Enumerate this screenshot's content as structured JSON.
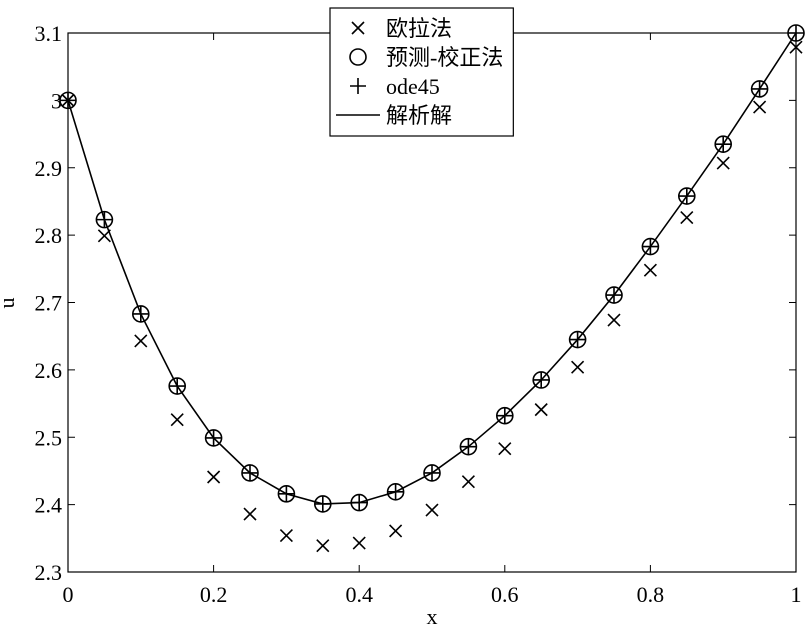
{
  "chart_data": {
    "type": "line",
    "xlabel": "x",
    "ylabel": "u",
    "x": [
      0,
      0.05,
      0.1,
      0.15,
      0.2,
      0.25,
      0.3,
      0.35,
      0.4,
      0.45,
      0.5,
      0.55,
      0.6,
      0.65,
      0.7,
      0.75,
      0.8,
      0.85,
      0.9,
      0.95,
      1
    ],
    "series": [
      {
        "name": "欧拉法",
        "color": "#000000",
        "marker": "x",
        "line": false,
        "values": [
          3.0,
          2.799,
          2.643,
          2.526,
          2.441,
          2.386,
          2.354,
          2.339,
          2.343,
          2.361,
          2.392,
          2.434,
          2.483,
          2.541,
          2.604,
          2.674,
          2.748,
          2.826,
          2.907,
          2.99,
          3.079
        ]
      },
      {
        "name": "预测-校正法",
        "color": "#000000",
        "marker": "o",
        "line": false,
        "values": [
          3.0,
          2.823,
          2.683,
          2.576,
          2.499,
          2.447,
          2.416,
          2.401,
          2.403,
          2.419,
          2.447,
          2.486,
          2.532,
          2.585,
          2.645,
          2.711,
          2.783,
          2.858,
          2.935,
          3.017,
          3.1
        ]
      },
      {
        "name": "ode45",
        "color": "#000000",
        "marker": "+",
        "line": false,
        "values": [
          3.0,
          2.823,
          2.683,
          2.576,
          2.499,
          2.447,
          2.416,
          2.401,
          2.403,
          2.419,
          2.447,
          2.486,
          2.532,
          2.585,
          2.645,
          2.711,
          2.783,
          2.858,
          2.935,
          3.017,
          3.1
        ]
      },
      {
        "name": "解析解",
        "color": "#000000",
        "marker": null,
        "line": true,
        "values": [
          3.0,
          2.823,
          2.683,
          2.576,
          2.499,
          2.447,
          2.416,
          2.401,
          2.403,
          2.419,
          2.447,
          2.486,
          2.532,
          2.585,
          2.645,
          2.711,
          2.783,
          2.858,
          2.935,
          3.017,
          3.1
        ]
      }
    ],
    "xlim": [
      0,
      1
    ],
    "xticks": [
      0,
      0.2,
      0.4,
      0.6,
      0.8,
      1
    ],
    "ylim": [
      2.3,
      3.1
    ],
    "yticks": [
      2.3,
      2.4,
      2.5,
      2.6,
      2.7,
      2.8,
      2.9,
      3,
      3.1
    ],
    "grid": false,
    "legend_loc": "upper center"
  }
}
